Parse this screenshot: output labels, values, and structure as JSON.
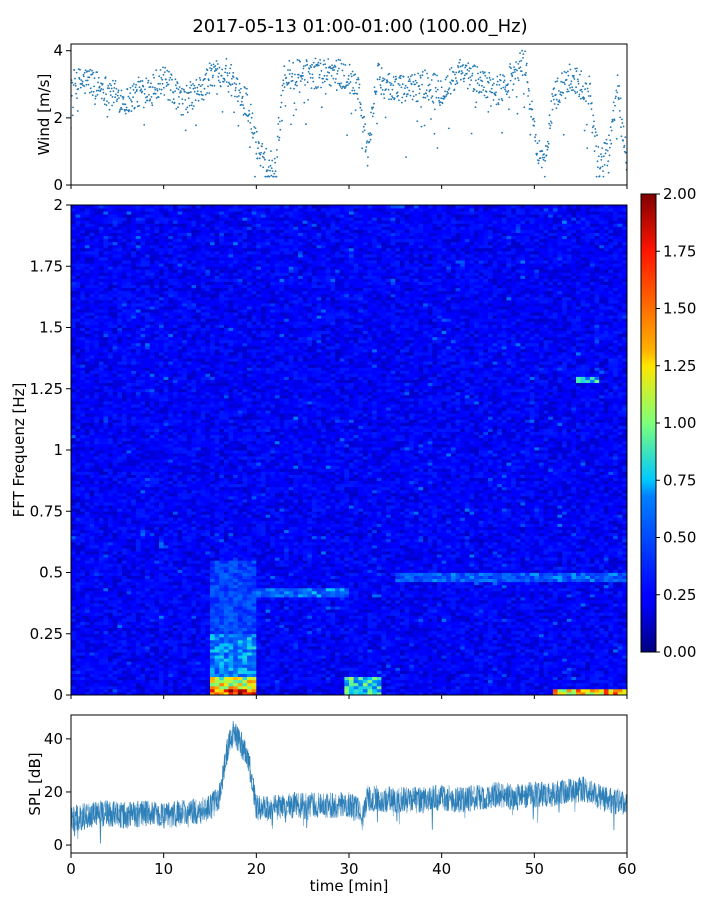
{
  "chart_data": [
    {
      "panel": "wind",
      "type": "scatter",
      "title": "2017-05-13 01:00-01:00 (100.00_Hz)",
      "ylabel": "Wind [m/s]",
      "xlim": [
        0,
        60
      ],
      "ylim": [
        0,
        4.2
      ],
      "yticks": [
        0,
        2,
        4
      ],
      "marker_color": "#1f77b4",
      "envelope": {
        "x": [
          0,
          2,
          4,
          6,
          8,
          10,
          12,
          14,
          15,
          16,
          17,
          18,
          19,
          20,
          21,
          22,
          23,
          24,
          26,
          28,
          30,
          31,
          32,
          33,
          34,
          36,
          38,
          40,
          42,
          44,
          46,
          48,
          49,
          50,
          51,
          52,
          53,
          54,
          56,
          57,
          58,
          59,
          60
        ],
        "y": [
          3.0,
          3.1,
          2.8,
          2.5,
          2.9,
          3.1,
          2.5,
          2.8,
          3.2,
          3.4,
          3.3,
          2.7,
          2.5,
          1.2,
          0.8,
          0.5,
          3.2,
          3.3,
          3.3,
          3.4,
          3.2,
          3.0,
          0.9,
          3.2,
          3.0,
          2.8,
          3.0,
          2.8,
          3.3,
          3.1,
          2.8,
          3.4,
          3.7,
          1.5,
          0.5,
          2.6,
          2.9,
          3.2,
          2.8,
          0.6,
          1.0,
          2.9,
          0.8
        ]
      }
    },
    {
      "panel": "spectrogram",
      "type": "heatmap",
      "ylabel": "FFT Frequenz [Hz]",
      "xlim": [
        0,
        60
      ],
      "ylim": [
        0,
        2
      ],
      "yticks": [
        "0",
        "0.25",
        "0.5",
        "0.75",
        "1",
        "1.25",
        "1.5",
        "1.75",
        "2"
      ],
      "colormap": "jet",
      "colorbar": {
        "range": [
          0,
          2
        ],
        "ticks": [
          "0.00",
          "0.25",
          "0.50",
          "0.75",
          "1.00",
          "1.25",
          "1.50",
          "1.75",
          "2.00"
        ]
      },
      "background_level": 0.25,
      "features": [
        {
          "x": [
            15,
            20
          ],
          "y": [
            0,
            0.03
          ],
          "value": 2.0
        },
        {
          "x": [
            15,
            20
          ],
          "y": [
            0.03,
            0.08
          ],
          "value": 1.4
        },
        {
          "x": [
            15,
            20
          ],
          "y": [
            0.08,
            0.25
          ],
          "value": 0.75
        },
        {
          "x": [
            15,
            20
          ],
          "y": [
            0.25,
            0.55
          ],
          "value": 0.55
        },
        {
          "x": [
            20,
            30
          ],
          "y": [
            0.4,
            0.44
          ],
          "value": 0.7
        },
        {
          "x": [
            29.5,
            33.5
          ],
          "y": [
            0,
            0.08
          ],
          "value": 1.0
        },
        {
          "x": [
            35,
            60
          ],
          "y": [
            0.46,
            0.5
          ],
          "value": 0.65
        },
        {
          "x": [
            52,
            60
          ],
          "y": [
            0,
            0.02
          ],
          "value": 1.6
        },
        {
          "x": [
            54.5,
            57
          ],
          "y": [
            1.27,
            1.3
          ],
          "value": 0.9
        }
      ]
    },
    {
      "panel": "spl",
      "type": "line",
      "ylabel": "SPL [dB]",
      "xlabel": "time [min]",
      "xlim": [
        0,
        60
      ],
      "ylim": [
        -3,
        49
      ],
      "yticks": [
        0,
        20,
        40
      ],
      "xticks": [
        0,
        10,
        20,
        30,
        40,
        50,
        60
      ],
      "color": "#1f77b4",
      "x": [
        0,
        2,
        4,
        6,
        8,
        10,
        12,
        14,
        15,
        16,
        16.5,
        17,
        17.5,
        18,
        18.5,
        19,
        19.5,
        20,
        22,
        24,
        26,
        28,
        30,
        31,
        31.5,
        32,
        34,
        36,
        38,
        40,
        42,
        44,
        46,
        48,
        50,
        52,
        53,
        54,
        55,
        56,
        57,
        58,
        60
      ],
      "y": [
        10,
        11,
        12,
        11,
        12,
        11,
        12,
        13,
        14,
        18,
        28,
        38,
        42,
        40,
        37,
        35,
        25,
        14,
        14,
        15,
        15,
        15,
        15,
        13,
        10,
        18,
        17,
        17,
        17,
        18,
        17,
        18,
        19,
        18,
        19,
        19,
        20,
        20,
        21,
        21,
        18,
        17,
        16
      ],
      "spread": 5
    }
  ]
}
